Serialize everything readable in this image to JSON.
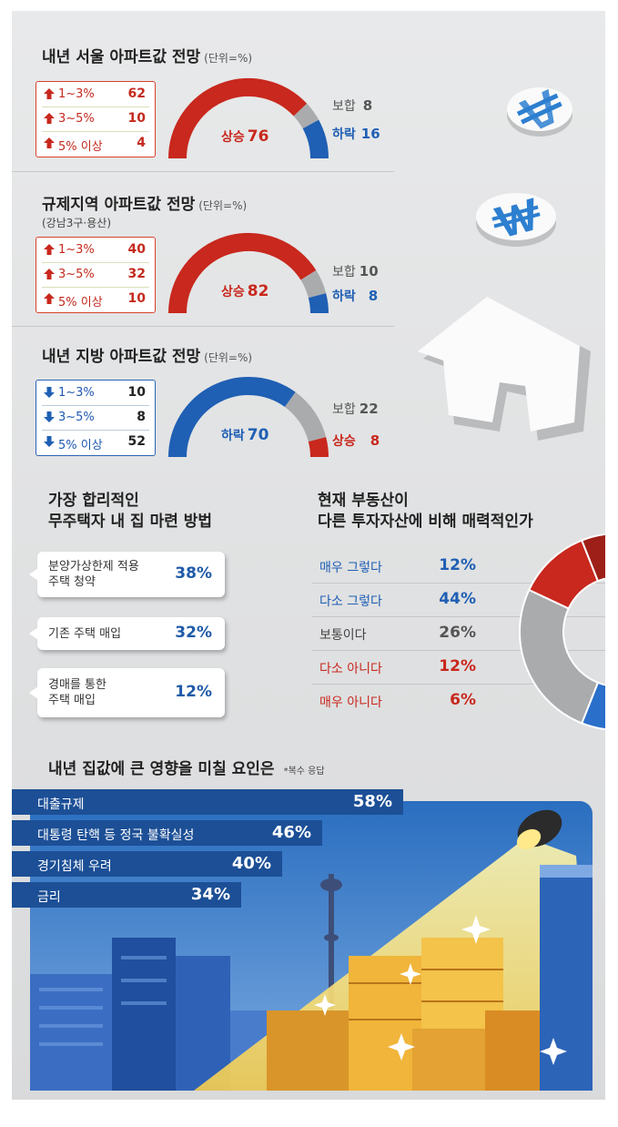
{
  "seoul": {
    "title": "내년 서울 아파트값 전망",
    "unit": "(단위=%)",
    "breakdown": [
      {
        "label": "1~3%",
        "value": 62
      },
      {
        "label": "3~5%",
        "value": 10
      },
      {
        "label": "5% 이상",
        "value": 4
      }
    ],
    "main_label": "상승",
    "main_value": 76,
    "neutral_label": "보합",
    "neutral_value": 8,
    "minor_label": "하락",
    "minor_value": 16
  },
  "regulated": {
    "title": "규제지역 아파트값 전망",
    "unit": "(단위=%)",
    "subtitle": "(강남3구·용산)",
    "breakdown": [
      {
        "label": "1~3%",
        "value": 40
      },
      {
        "label": "3~5%",
        "value": 32
      },
      {
        "label": "5% 이상",
        "value": 10
      }
    ],
    "main_label": "상승",
    "main_value": 82,
    "neutral_label": "보합",
    "neutral_value": 10,
    "minor_label": "하락",
    "minor_value": 8
  },
  "regional": {
    "title": "내년 지방 아파트값 전망",
    "unit": "(단위=%)",
    "breakdown": [
      {
        "label": "1~3%",
        "value": 10
      },
      {
        "label": "3~5%",
        "value": 8
      },
      {
        "label": "5% 이상",
        "value": 52
      }
    ],
    "main_label": "하락",
    "main_value": 70,
    "neutral_label": "보합",
    "neutral_value": 22,
    "minor_label": "상승",
    "minor_value": 8
  },
  "method": {
    "title_line1": "가장 합리적인",
    "title_line2": "무주택자 내 집 마련 방법",
    "items": [
      {
        "line1": "분양가상한제 적용",
        "line2": "주택 청약",
        "value": "38%"
      },
      {
        "line1": "기존 주택 매입",
        "line2": "",
        "value": "32%"
      },
      {
        "line1": "경매를 통한",
        "line2": "주택 매입",
        "value": "12%"
      }
    ]
  },
  "attractive": {
    "title_line1": "현재 부동산이",
    "title_line2": "다른 투자자산에 비해 매력적인가",
    "items": [
      {
        "label": "매우 그렇다",
        "value": 12,
        "text": "12%",
        "color": "#1f5fb4"
      },
      {
        "label": "다소 그렇다",
        "value": 44,
        "text": "44%",
        "color": "#1f5fb4"
      },
      {
        "label": "보통이다",
        "value": 26,
        "text": "26%",
        "color": "#555555"
      },
      {
        "label": "다소 아니다",
        "value": 12,
        "text": "12%",
        "color": "#c8281d"
      },
      {
        "label": "매우 아니다",
        "value": 6,
        "text": "6%",
        "color": "#c8281d"
      }
    ]
  },
  "factors": {
    "title": "내년 집값에 큰 영향을 미칠 요인은",
    "note": "*복수 응답",
    "items": [
      {
        "label": "대출규제",
        "value": 58,
        "text": "58%"
      },
      {
        "label": "대통령 탄핵 등 정국 불확실성",
        "value": 46,
        "text": "46%"
      },
      {
        "label": "경기침체 우려",
        "value": 40,
        "text": "40%"
      },
      {
        "label": "금리",
        "value": 34,
        "text": "34%"
      }
    ]
  },
  "colors": {
    "red": "#c8281d",
    "blue": "#1f5fb4",
    "gray": "#a9abad",
    "navy": "#1c4f96"
  },
  "chart_data": [
    {
      "type": "pie",
      "title": "내년 서울 아파트값 전망",
      "categories": [
        "상승",
        "보합",
        "하락"
      ],
      "values": [
        76,
        8,
        16
      ]
    },
    {
      "type": "pie",
      "title": "규제지역 아파트값 전망",
      "categories": [
        "상승",
        "보합",
        "하락"
      ],
      "values": [
        82,
        10,
        8
      ]
    },
    {
      "type": "pie",
      "title": "내년 지방 아파트값 전망",
      "categories": [
        "하락",
        "보합",
        "상승"
      ],
      "values": [
        70,
        22,
        8
      ]
    },
    {
      "type": "pie",
      "title": "현재 부동산이 다른 투자자산에 비해 매력적인가",
      "categories": [
        "매우 그렇다",
        "다소 그렇다",
        "보통이다",
        "다소 아니다",
        "매우 아니다"
      ],
      "values": [
        12,
        44,
        26,
        12,
        6
      ]
    },
    {
      "type": "bar",
      "title": "내년 집값에 큰 영향을 미칠 요인은",
      "categories": [
        "대출규제",
        "대통령 탄핵 등 정국 불확실성",
        "경기침체 우려",
        "금리"
      ],
      "values": [
        58,
        46,
        40,
        34
      ]
    }
  ]
}
